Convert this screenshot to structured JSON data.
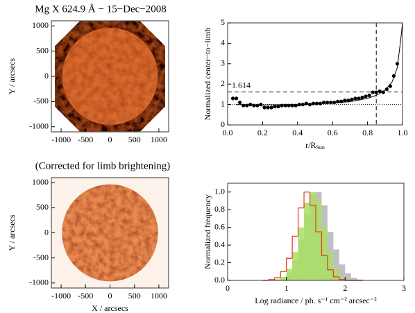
{
  "chart_data": [
    {
      "type": "image",
      "title": "Mg X 624.9 Å − 15−Dec−2008",
      "ylabel": "Y / arcsecs",
      "xlim": [
        -1200,
        1200
      ],
      "ylim": [
        -1100,
        1100
      ],
      "xticks": [
        -1000,
        -500,
        0,
        500,
        1000
      ],
      "yticks": [
        -1000,
        -500,
        0,
        500,
        1000
      ]
    },
    {
      "type": "scatter",
      "ylabel": "Normalized center−to−limb",
      "xlabel": "r/R",
      "xlabel_sub": "Sun",
      "xlim": [
        0,
        1
      ],
      "ylim": [
        0,
        5
      ],
      "xticks": [
        {
          "value": 0,
          "label": "0.0"
        },
        0.2,
        0.4,
        0.6,
        0.8,
        {
          "value": 1,
          "label": "1.0"
        }
      ],
      "yticks": [
        0,
        1,
        2,
        3,
        4,
        5
      ],
      "hline": {
        "value": 1.614
      },
      "vline": 0.85,
      "refline": 1,
      "series": [
        {
          "type": "scatter",
          "color": "#000000",
          "x": [
            0.03,
            0.05,
            0.07,
            0.09,
            0.11,
            0.13,
            0.15,
            0.17,
            0.19,
            0.21,
            0.23,
            0.25,
            0.27,
            0.29,
            0.31,
            0.33,
            0.35,
            0.37,
            0.39,
            0.41,
            0.43,
            0.45,
            0.47,
            0.49,
            0.51,
            0.53,
            0.55,
            0.57,
            0.59,
            0.61,
            0.63,
            0.65,
            0.67,
            0.69,
            0.71,
            0.73,
            0.75,
            0.77,
            0.79,
            0.81,
            0.83,
            0.85,
            0.87,
            0.89,
            0.91,
            0.93,
            0.95,
            0.97
          ],
          "values": [
            1.3,
            1.3,
            1.1,
            0.95,
            0.95,
            1.0,
            0.95,
            0.95,
            1.0,
            0.85,
            0.85,
            0.85,
            0.9,
            0.9,
            0.95,
            0.95,
            0.95,
            0.95,
            0.95,
            1.0,
            1.0,
            1.05,
            1.0,
            1.05,
            1.05,
            1.05,
            1.1,
            1.1,
            1.1,
            1.1,
            1.15,
            1.15,
            1.2,
            1.2,
            1.25,
            1.3,
            1.3,
            1.35,
            1.4,
            1.45,
            1.6,
            1.6,
            1.65,
            1.6,
            1.75,
            1.9,
            2.4,
            3.0
          ]
        },
        {
          "type": "line",
          "color": "#000000",
          "x": [
            0.05,
            0.2,
            0.4,
            0.6,
            0.7,
            0.8,
            0.85,
            0.9,
            0.94,
            0.97,
            0.99,
            1.0
          ],
          "values": [
            1.0,
            0.98,
            1.0,
            1.07,
            1.14,
            1.3,
            1.45,
            1.7,
            2.1,
            2.8,
            4.2,
            5.0
          ]
        }
      ]
    },
    {
      "type": "image",
      "title": "(Corrected for limb brightening)",
      "ylabel": "Y / arcsecs",
      "xlabel": "X / arcsecs",
      "xlim": [
        -1200,
        1200
      ],
      "ylim": [
        -1100,
        1100
      ],
      "xticks": [
        -1000,
        -500,
        0,
        500,
        1000
      ],
      "yticks": [
        -1000,
        -500,
        0,
        500,
        1000
      ]
    },
    {
      "type": "histogram",
      "ylabel": "Normalized frequency",
      "xlabel": "Log radiance / ph. s⁻¹ cm⁻² arcsec⁻²",
      "xlim": [
        0,
        3
      ],
      "ylim": [
        0,
        1.1
      ],
      "xticks": [
        0,
        1,
        2,
        3
      ],
      "yticks": [
        {
          "value": 0,
          "label": "0.0"
        },
        0.2,
        0.4,
        0.6,
        0.8,
        {
          "value": 1,
          "label": "1.0"
        }
      ],
      "bins": [
        0.6,
        0.7,
        0.8,
        0.9,
        1.0,
        1.1,
        1.2,
        1.3,
        1.4,
        1.5,
        1.6,
        1.7,
        1.8,
        1.9,
        2.0,
        2.1,
        2.2,
        2.3
      ],
      "series": [
        {
          "color": "#b4b4bc",
          "style": "fill",
          "values": [
            0,
            0,
            0.01,
            0.02,
            0.08,
            0.22,
            0.46,
            0.75,
            0.97,
            1.0,
            0.85,
            0.55,
            0.35,
            0.18,
            0.08,
            0.03,
            0.01
          ]
        },
        {
          "color": "#a8e060",
          "style": "fill",
          "values": [
            0,
            0,
            0.01,
            0.04,
            0.13,
            0.32,
            0.6,
            0.88,
            1.0,
            0.9,
            0.6,
            0.32,
            0.13,
            0.04,
            0.01,
            0,
            0
          ]
        },
        {
          "color": "#e8402a",
          "style": "step",
          "values": [
            0,
            0.01,
            0.03,
            0.1,
            0.25,
            0.5,
            0.82,
            1.0,
            0.85,
            0.55,
            0.28,
            0.12,
            0.04,
            0.01,
            0,
            0,
            0
          ]
        }
      ]
    }
  ]
}
